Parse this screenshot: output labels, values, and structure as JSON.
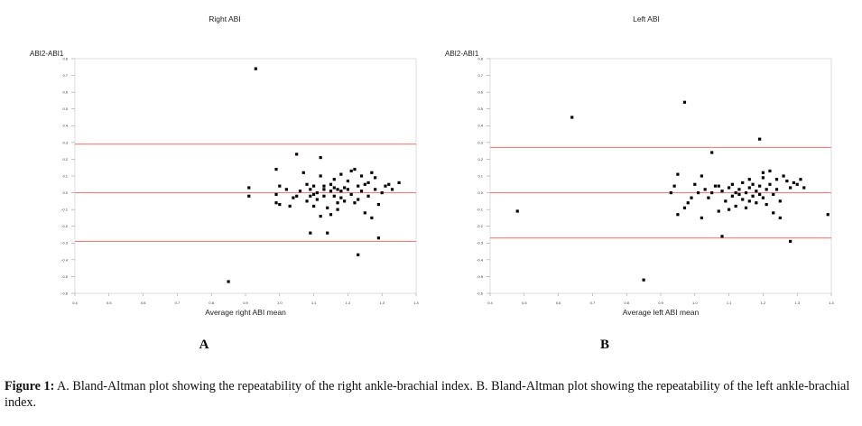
{
  "chart_data": [
    {
      "type": "scatter",
      "title": "Right ABI",
      "ylabel": "ABI2-ABI1",
      "xlabel": "Average right ABI mean",
      "panel_label": "A",
      "xlim": [
        0.4,
        1.4
      ],
      "ylim": [
        -0.6,
        0.8
      ],
      "x_ticks": [
        "0.4",
        "0.5",
        "0.6",
        "0.7",
        "0.8",
        "0.9",
        "1.0",
        "1.1",
        "1.2",
        "1.3",
        "1.4"
      ],
      "y_ticks": [
        "0.8",
        "0.7",
        "0.6",
        "0.5",
        "0.4",
        "0.3",
        "0.2",
        "0.1",
        "0.0",
        "-0.1",
        "-0.2",
        "-0.3",
        "-0.4",
        "-0.5",
        "-0.6"
      ],
      "reference_lines": [
        0.29,
        0.0,
        -0.29
      ],
      "line_color": "#f08080",
      "point_color": "#000000",
      "points": [
        [
          0.93,
          0.74
        ],
        [
          0.85,
          -0.53
        ],
        [
          1.23,
          -0.37
        ],
        [
          1.29,
          -0.27
        ],
        [
          1.09,
          -0.24
        ],
        [
          1.14,
          -0.24
        ],
        [
          1.05,
          0.23
        ],
        [
          1.12,
          0.21
        ],
        [
          0.91,
          0.03
        ],
        [
          0.91,
          -0.02
        ],
        [
          0.99,
          0.14
        ],
        [
          1.0,
          0.04
        ],
        [
          0.99,
          -0.01
        ],
        [
          0.99,
          -0.06
        ],
        [
          1.0,
          -0.07
        ],
        [
          1.02,
          0.02
        ],
        [
          1.03,
          -0.08
        ],
        [
          1.04,
          -0.03
        ],
        [
          1.05,
          -0.02
        ],
        [
          1.06,
          0.01
        ],
        [
          1.07,
          0.12
        ],
        [
          1.08,
          0.05
        ],
        [
          1.08,
          -0.05
        ],
        [
          1.09,
          -0.02
        ],
        [
          1.09,
          0.02
        ],
        [
          1.1,
          0.04
        ],
        [
          1.1,
          -0.01
        ],
        [
          1.11,
          -0.04
        ],
        [
          1.11,
          0.0
        ],
        [
          1.12,
          0.1
        ],
        [
          1.12,
          -0.14
        ],
        [
          1.13,
          0.02
        ],
        [
          1.13,
          -0.02
        ],
        [
          1.13,
          0.04
        ],
        [
          1.14,
          -0.09
        ],
        [
          1.15,
          0.01
        ],
        [
          1.15,
          0.05
        ],
        [
          1.16,
          -0.02
        ],
        [
          1.16,
          0.03
        ],
        [
          1.16,
          0.08
        ],
        [
          1.17,
          -0.06
        ],
        [
          1.17,
          0.02
        ],
        [
          1.17,
          -0.1
        ],
        [
          1.18,
          0.01
        ],
        [
          1.18,
          -0.03
        ],
        [
          1.18,
          0.11
        ],
        [
          1.19,
          0.03
        ],
        [
          1.19,
          -0.05
        ],
        [
          1.2,
          0.02
        ],
        [
          1.2,
          0.07
        ],
        [
          1.21,
          -0.01
        ],
        [
          1.21,
          0.13
        ],
        [
          1.22,
          0.14
        ],
        [
          1.22,
          -0.06
        ],
        [
          1.23,
          0.04
        ],
        [
          1.23,
          -0.04
        ],
        [
          1.24,
          0.1
        ],
        [
          1.24,
          0.01
        ],
        [
          1.25,
          0.05
        ],
        [
          1.25,
          -0.12
        ],
        [
          1.26,
          -0.02
        ],
        [
          1.26,
          0.06
        ],
        [
          1.27,
          0.12
        ],
        [
          1.27,
          -0.15
        ],
        [
          1.28,
          0.02
        ],
        [
          1.28,
          0.09
        ],
        [
          1.29,
          -0.07
        ],
        [
          1.3,
          0.0
        ],
        [
          1.31,
          0.04
        ],
        [
          1.32,
          0.05
        ],
        [
          1.33,
          0.02
        ],
        [
          1.35,
          0.06
        ],
        [
          1.15,
          -0.13
        ],
        [
          1.1,
          -0.08
        ]
      ]
    },
    {
      "type": "scatter",
      "title": "Left ABI",
      "ylabel": "ABI2-ABI1",
      "xlabel": "Average left ABI mean",
      "panel_label": "B",
      "xlim": [
        0.4,
        1.4
      ],
      "ylim": [
        -0.6,
        0.8
      ],
      "x_ticks": [
        "0.4",
        "0.5",
        "0.6",
        "0.7",
        "0.8",
        "0.9",
        "1.0",
        "1.1",
        "1.2",
        "1.3",
        "1.4"
      ],
      "y_ticks": [
        "0.8",
        "0.7",
        "0.6",
        "0.5",
        "0.4",
        "0.3",
        "0.2",
        "0.1",
        "0.0",
        "-0.1",
        "-0.2",
        "-0.3",
        "-0.4",
        "-0.5",
        "-0.6"
      ],
      "reference_lines": [
        0.27,
        0.0,
        -0.27
      ],
      "line_color": "#f08080",
      "point_color": "#000000",
      "points": [
        [
          0.64,
          0.45
        ],
        [
          0.97,
          0.54
        ],
        [
          0.48,
          -0.11
        ],
        [
          0.85,
          -0.52
        ],
        [
          1.39,
          -0.13
        ],
        [
          1.05,
          0.24
        ],
        [
          1.19,
          0.32
        ],
        [
          1.08,
          -0.26
        ],
        [
          1.28,
          -0.29
        ],
        [
          0.93,
          0.0
        ],
        [
          0.94,
          0.04
        ],
        [
          0.95,
          0.11
        ],
        [
          0.95,
          -0.13
        ],
        [
          0.97,
          -0.09
        ],
        [
          0.98,
          -0.06
        ],
        [
          0.99,
          -0.03
        ],
        [
          1.0,
          0.05
        ],
        [
          1.01,
          0.0
        ],
        [
          1.02,
          0.1
        ],
        [
          1.03,
          0.02
        ],
        [
          1.04,
          -0.03
        ],
        [
          1.05,
          0.0
        ],
        [
          1.06,
          0.04
        ],
        [
          1.07,
          -0.11
        ],
        [
          1.08,
          0.01
        ],
        [
          1.09,
          -0.05
        ],
        [
          1.1,
          0.03
        ],
        [
          1.11,
          -0.02
        ],
        [
          1.11,
          0.05
        ],
        [
          1.12,
          0.0
        ],
        [
          1.12,
          -0.08
        ],
        [
          1.13,
          0.02
        ],
        [
          1.14,
          -0.04
        ],
        [
          1.14,
          0.06
        ],
        [
          1.15,
          0.0
        ],
        [
          1.15,
          -0.09
        ],
        [
          1.16,
          0.03
        ],
        [
          1.16,
          0.08
        ],
        [
          1.17,
          -0.02
        ],
        [
          1.17,
          0.05
        ],
        [
          1.18,
          -0.06
        ],
        [
          1.18,
          0.01
        ],
        [
          1.19,
          0.04
        ],
        [
          1.19,
          -0.01
        ],
        [
          1.2,
          0.09
        ],
        [
          1.2,
          -0.03
        ],
        [
          1.21,
          0.02
        ],
        [
          1.21,
          -0.07
        ],
        [
          1.22,
          0.13
        ],
        [
          1.22,
          0.05
        ],
        [
          1.23,
          -0.12
        ],
        [
          1.23,
          -0.01
        ],
        [
          1.24,
          0.08
        ],
        [
          1.24,
          0.02
        ],
        [
          1.25,
          -0.05
        ],
        [
          1.26,
          0.1
        ],
        [
          1.27,
          0.07
        ],
        [
          1.28,
          0.03
        ],
        [
          1.29,
          0.06
        ],
        [
          1.3,
          0.05
        ],
        [
          1.31,
          0.08
        ],
        [
          1.32,
          0.03
        ],
        [
          1.13,
          -0.01
        ],
        [
          1.1,
          -0.1
        ],
        [
          1.07,
          0.04
        ],
        [
          1.16,
          -0.05
        ],
        [
          1.2,
          0.12
        ],
        [
          1.25,
          -0.15
        ],
        [
          1.02,
          -0.15
        ]
      ]
    }
  ],
  "caption": {
    "label": "Figure 1:",
    "text": " A. Bland-Altman plot showing the repeatability of the right ankle-brachial index. B. Bland-Altman plot showing the repeatability of the left ankle-brachial index."
  }
}
